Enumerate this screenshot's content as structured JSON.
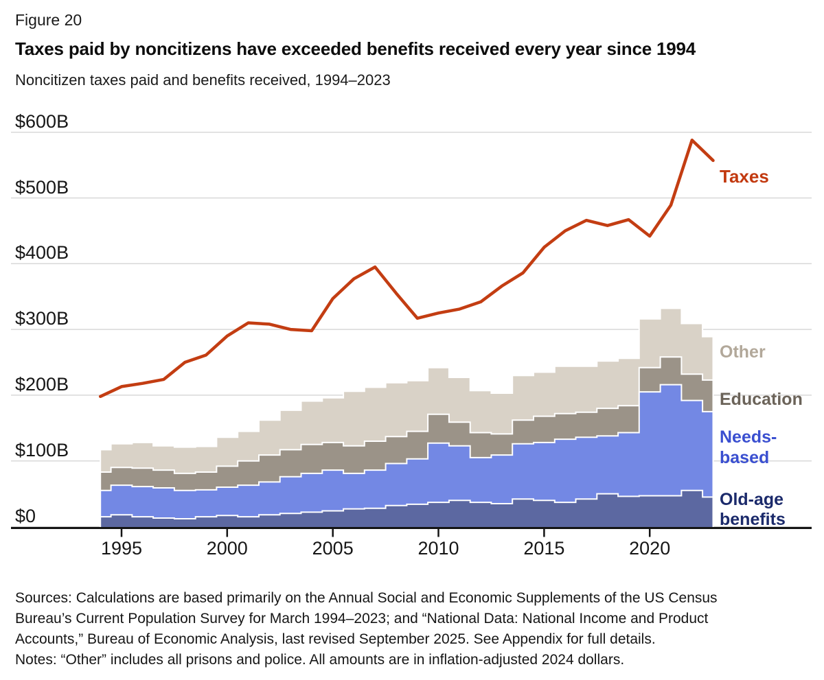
{
  "figure_label": "Figure 20",
  "title": "Taxes paid by noncitizens have exceeded benefits received every year since 1994",
  "subtitle": "Noncitizen taxes paid and benefits received, 1994–2023",
  "footer": {
    "sources_lines": [
      "Sources: Calculations are based primarily on the Annual Social and Economic Supplements of the US Census",
      "Bureau’s Current Population Survey for March 1994–2023; and “National Data: National Income and Product",
      "Accounts,” Bureau of Economic Analysis, last revised September 2025. See Appendix for full details."
    ],
    "notes": "Notes: “Other” includes all prisons and police. All amounts are in inflation-adjusted 2024 dollars."
  },
  "colors": {
    "grid": "#d8d8d8",
    "axis": "#141414",
    "text": "#161616",
    "area_divider": "#ffffff"
  },
  "chart_data": {
    "type": "line+stacked-step-area",
    "unit": "billions of inflation-adjusted 2024 US dollars",
    "x_range": [
      1994,
      2023
    ],
    "ylim": [
      0,
      600
    ],
    "grid": true,
    "legend_position": "right-of-data",
    "x": [
      1994,
      1995,
      1996,
      1997,
      1998,
      1999,
      2000,
      2001,
      2002,
      2003,
      2004,
      2005,
      2006,
      2007,
      2008,
      2009,
      2010,
      2011,
      2012,
      2013,
      2014,
      2015,
      2016,
      2017,
      2018,
      2019,
      2020,
      2021,
      2022,
      2023
    ],
    "x_ticks": [
      {
        "label": "1995",
        "year": 1995
      },
      {
        "label": "2000",
        "year": 2000
      },
      {
        "label": "2005",
        "year": 2005
      },
      {
        "label": "2010",
        "year": 2010
      },
      {
        "label": "2015",
        "year": 2015
      },
      {
        "label": "2020",
        "year": 2020
      }
    ],
    "y_ticks": [
      {
        "label": "$600B",
        "value": 600
      },
      {
        "label": "$500B",
        "value": 500
      },
      {
        "label": "$400B",
        "value": 400
      },
      {
        "label": "$300B",
        "value": 300
      },
      {
        "label": "$200B",
        "value": 200
      },
      {
        "label": "$100B",
        "value": 100
      },
      {
        "label": "$0",
        "value": 0
      }
    ],
    "line_series": {
      "name": "Taxes",
      "color": "#c33d12",
      "label_color": "#c2390f",
      "values": [
        198,
        213,
        218,
        224,
        250,
        261,
        290,
        310,
        308,
        300,
        298,
        347,
        377,
        395,
        355,
        317,
        325,
        331,
        342,
        366,
        386,
        425,
        450,
        466,
        458,
        467,
        442,
        489,
        588,
        557
      ]
    },
    "stacked_series": [
      {
        "name": "Old-age benefits",
        "label_lines": [
          "Old-age",
          "benefits"
        ],
        "color": "#5c68a1",
        "label_color": "#1b2a6b",
        "values": [
          15,
          18,
          15,
          13,
          12,
          15,
          17,
          15,
          18,
          20,
          22,
          24,
          27,
          28,
          32,
          34,
          37,
          40,
          37,
          35,
          42,
          40,
          37,
          42,
          50,
          46,
          47,
          47,
          55,
          45
        ]
      },
      {
        "name": "Needs-based",
        "label_lines": [
          "Needs-",
          "based"
        ],
        "color": "#7388e4",
        "label_color": "#3a4fd0",
        "values": [
          40,
          45,
          46,
          46,
          43,
          41,
          43,
          48,
          50,
          56,
          59,
          62,
          54,
          58,
          64,
          69,
          90,
          83,
          68,
          74,
          84,
          88,
          96,
          94,
          88,
          97,
          158,
          169,
          137,
          130
        ]
      },
      {
        "name": "Education",
        "label_lines": [
          "Education"
        ],
        "color": "#9b9388",
        "label_color": "#6b6359",
        "values": [
          28,
          27,
          28,
          27,
          26,
          27,
          32,
          37,
          41,
          41,
          44,
          42,
          42,
          44,
          41,
          42,
          44,
          36,
          38,
          32,
          36,
          40,
          39,
          38,
          42,
          41,
          37,
          42,
          40,
          48
        ]
      },
      {
        "name": "Other",
        "label_lines": [
          "Other"
        ],
        "color": "#d9d2c7",
        "label_color": "#b2a89a",
        "values": [
          34,
          36,
          39,
          37,
          40,
          39,
          44,
          45,
          53,
          60,
          66,
          68,
          83,
          82,
          82,
          77,
          71,
          68,
          64,
          62,
          68,
          67,
          72,
          70,
          72,
          72,
          74,
          74,
          77,
          66
        ]
      }
    ]
  }
}
